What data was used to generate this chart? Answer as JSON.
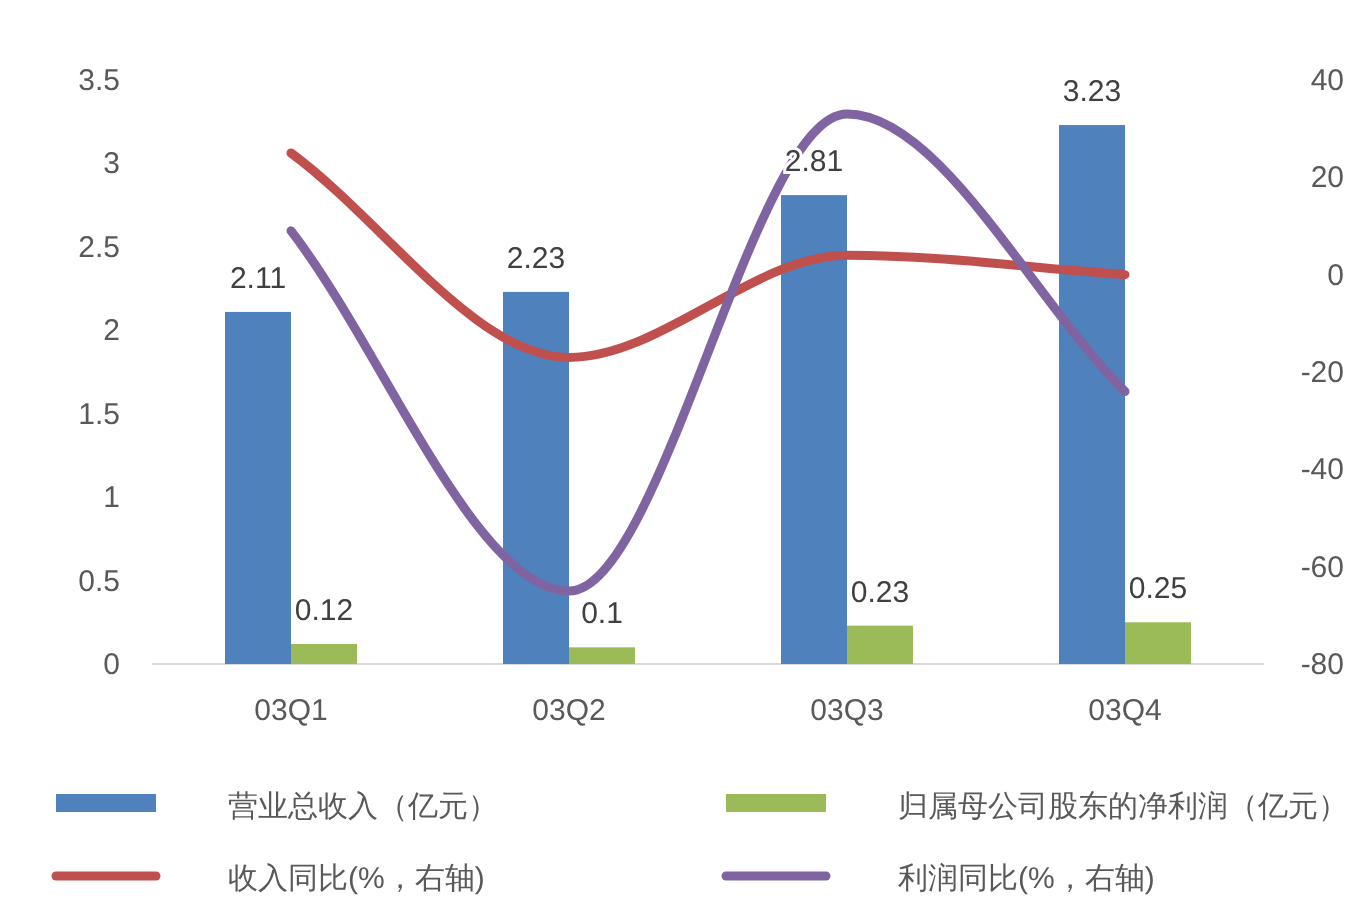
{
  "chart_data": {
    "type": "bar",
    "categories": [
      "03Q1",
      "03Q2",
      "03Q3",
      "03Q4"
    ],
    "series": [
      {
        "name": "营业总收入（亿元）",
        "color": "#4f81bd",
        "values": [
          2.11,
          2.23,
          2.81,
          3.23
        ],
        "value_labels": [
          "2.11",
          "2.23",
          "2.81",
          "3.23"
        ]
      },
      {
        "name": "归属母公司股东的净利润（亿元）",
        "color": "#9bbb59",
        "values": [
          0.12,
          0.1,
          0.23,
          0.25
        ],
        "value_labels": [
          "0.12",
          "0.1",
          "0.23",
          "0.25"
        ]
      },
      {
        "name": "收入同比(%，右轴)",
        "type": "line",
        "axis": "y2",
        "color": "#c0504d",
        "values": [
          25,
          -17,
          4,
          0
        ]
      },
      {
        "name": "利润同比(%，右轴)",
        "type": "line",
        "axis": "y2",
        "color": "#8064a2",
        "values": [
          9,
          -65,
          33,
          -24
        ]
      }
    ],
    "ylim": [
      0,
      3.5
    ],
    "yticks": [
      0,
      0.5,
      1,
      1.5,
      2,
      2.5,
      3,
      3.5
    ],
    "y2lim": [
      -80,
      40
    ],
    "y2ticks": [
      -80,
      -60,
      -40,
      -20,
      0,
      20,
      40
    ],
    "legend": "bottom"
  }
}
